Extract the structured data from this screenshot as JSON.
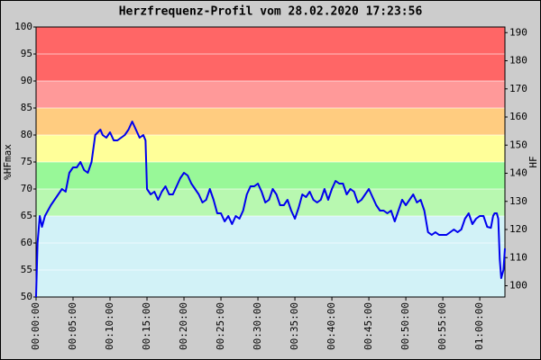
{
  "chart_data": {
    "type": "line",
    "title": "Herzfrequenz-Profil vom 28.02.2020 17:23:56",
    "ylabel": "%HFmax",
    "y2label": "HF",
    "xlim": [
      0,
      63.4
    ],
    "ylim": [
      50,
      100
    ],
    "y2lim": [
      96,
      192
    ],
    "yticks": [
      50,
      55,
      60,
      65,
      70,
      75,
      80,
      85,
      90,
      95,
      100
    ],
    "y2ticks": [
      100,
      110,
      120,
      130,
      140,
      150,
      160,
      170,
      180,
      190
    ],
    "xticks": [
      {
        "value": 0,
        "label": "00:00:00"
      },
      {
        "value": 5,
        "label": "00:05:00"
      },
      {
        "value": 10,
        "label": "00:10:00"
      },
      {
        "value": 15,
        "label": "00:15:00"
      },
      {
        "value": 20,
        "label": "00:20:00"
      },
      {
        "value": 25,
        "label": "00:25:00"
      },
      {
        "value": 30,
        "label": "00:30:00"
      },
      {
        "value": 35,
        "label": "00:35:00"
      },
      {
        "value": 40,
        "label": "00:40:00"
      },
      {
        "value": 45,
        "label": "00:45:00"
      },
      {
        "value": 50,
        "label": "00:50:00"
      },
      {
        "value": 55,
        "label": "00:55:00"
      },
      {
        "value": 60,
        "label": "01:00:00"
      }
    ],
    "zones": [
      {
        "from": 50,
        "to": 65,
        "color": "#d2f2f7"
      },
      {
        "from": 65,
        "to": 70,
        "color": "#b8f8b0"
      },
      {
        "from": 70,
        "to": 75,
        "color": "#98f898"
      },
      {
        "from": 75,
        "to": 80,
        "color": "#ffff99"
      },
      {
        "from": 80,
        "to": 85,
        "color": "#ffcc80"
      },
      {
        "from": 85,
        "to": 90,
        "color": "#ff9999"
      },
      {
        "from": 90,
        "to": 100,
        "color": "#ff6666"
      }
    ],
    "grid": true,
    "x": [
      0,
      0.2,
      0.5,
      0.8,
      1.2,
      2,
      3,
      3.5,
      4,
      4.5,
      5,
      5.5,
      6,
      6.5,
      7,
      7.5,
      8,
      8.7,
      9,
      9.5,
      10,
      10.5,
      11,
      12,
      12.5,
      13,
      13.5,
      14,
      14.5,
      14.8,
      15,
      15.5,
      16,
      16.5,
      17,
      17.5,
      18,
      18.5,
      19,
      19.5,
      20,
      20.5,
      21,
      22,
      22.5,
      23,
      23.5,
      24,
      24.5,
      25,
      25.5,
      26,
      26.5,
      27,
      27.5,
      28,
      28.5,
      29,
      29.5,
      30,
      30.5,
      31,
      31.5,
      32,
      32.5,
      33,
      33.5,
      34,
      34.5,
      35,
      35.5,
      36,
      36.5,
      37,
      37.5,
      38,
      38.5,
      39,
      39.5,
      40,
      40.5,
      41,
      41.5,
      42,
      42.5,
      43,
      43.5,
      44,
      44.5,
      45,
      45.5,
      46,
      46.5,
      47,
      47.5,
      48,
      48.5,
      49,
      49.5,
      50,
      50.5,
      51,
      51.5,
      52,
      52.5,
      53,
      53.5,
      54,
      54.5,
      55,
      55.5,
      56,
      56.5,
      57,
      57.5,
      58,
      58.5,
      59,
      59.5,
      60,
      60.5,
      61,
      61.5,
      61.8,
      62,
      62.3,
      62.5,
      62.7,
      62.9,
      63.2,
      63.4
    ],
    "series": [
      {
        "name": "HF",
        "color": "#0000ee",
        "values": [
          50,
          60,
          65,
          63,
          65,
          67,
          69,
          70,
          69.5,
          73,
          74,
          74,
          75,
          73.5,
          73,
          75,
          80,
          81,
          80,
          79.5,
          80.5,
          79,
          79,
          80,
          81,
          82.5,
          81,
          79.5,
          80,
          79,
          70,
          69,
          69.5,
          68,
          69.5,
          70.5,
          69,
          69,
          70.5,
          72,
          73,
          72.5,
          71,
          69,
          67.5,
          68,
          70,
          68,
          65.5,
          65.5,
          64,
          65,
          63.5,
          65,
          64.5,
          66,
          69,
          70.5,
          70.5,
          71,
          69.5,
          67.5,
          68,
          70,
          69,
          67,
          67,
          68,
          66,
          64.5,
          66.5,
          69,
          68.5,
          69.5,
          68,
          67.5,
          68,
          70,
          68,
          70,
          71.5,
          71,
          71,
          69,
          70,
          69.5,
          67.5,
          68,
          69,
          70,
          68.5,
          67,
          66,
          66,
          65.5,
          66,
          64,
          66,
          68,
          67,
          68,
          69,
          67.5,
          68,
          66,
          62,
          61.5,
          62,
          61.5,
          61.5,
          61.5,
          62,
          62.5,
          62,
          62.5,
          64.5,
          65.5,
          63.5,
          64.5,
          65,
          65,
          63,
          62.8,
          65,
          65.5,
          65.5,
          64.5,
          57,
          53.5,
          55,
          59
        ]
      }
    ]
  }
}
